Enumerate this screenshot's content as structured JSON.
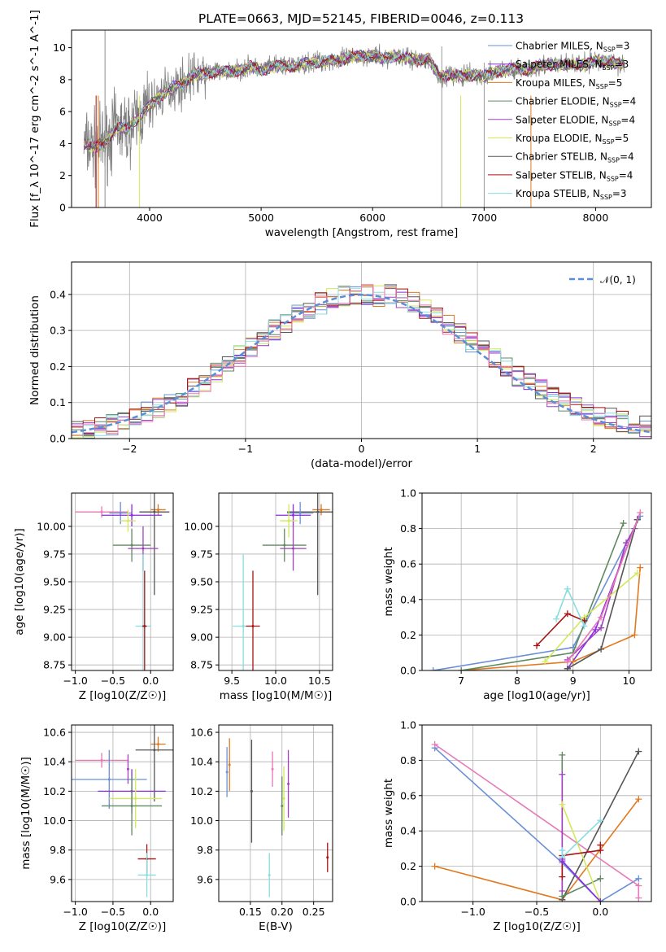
{
  "title": "PLATE=0663, MJD=52145, FIBERID=0046, z=0.113",
  "colors": {
    "chabrier_miles": "#6a8fd8",
    "salpeter_miles": "#8a2be2",
    "kroupa_miles": "#e07a20",
    "chabrier_elodie": "#5f8a5f",
    "salpeter_elodie": "#a040c0",
    "kroupa_elodie": "#d4e85a",
    "chabrier_stelib": "#555555",
    "salpeter_stelib": "#aa1111",
    "kroupa_stelib": "#88dde0",
    "pink": "#e878b8",
    "gauss": "#5b8ed8",
    "data": "#808080"
  },
  "chart_data": [
    {
      "type": "line",
      "panel": "spectrum",
      "title": "PLATE=0663, MJD=52145, FIBERID=0046, z=0.113",
      "xlabel": "wavelength [Angstrom, rest frame]",
      "ylabel": "Flux [f_λ 10^-17 erg cm^-2 s^-1 A^-1]",
      "xlim": [
        3300,
        8500
      ],
      "ylim": [
        0,
        11.1
      ],
      "xticks": [
        "4000",
        "5000",
        "6000",
        "7000",
        "8000"
      ],
      "yticks": [
        "0",
        "2",
        "4",
        "6",
        "8",
        "10"
      ],
      "grid": false,
      "legend": "top-right",
      "model_continuum": {
        "x": [
          3410,
          3500,
          3600,
          3700,
          3800,
          3900,
          4000,
          4100,
          4200,
          4300,
          4400,
          4500,
          4600,
          4700,
          4800,
          4900,
          5000,
          5100,
          5200,
          5300,
          5400,
          5500,
          5600,
          5700,
          5800,
          5900,
          6000,
          6100,
          6200,
          6300,
          6400,
          6500,
          6600,
          6700,
          6800,
          6900,
          7000,
          7100,
          7200,
          7300,
          7400,
          7500,
          7600,
          7700,
          7800,
          7900,
          8000,
          8100,
          8200,
          8260
        ],
        "y": [
          4.0,
          3.8,
          4.0,
          5.0,
          4.9,
          5.6,
          6.4,
          7.0,
          7.5,
          7.8,
          8.3,
          8.4,
          8.5,
          8.5,
          8.6,
          8.8,
          8.6,
          8.8,
          8.9,
          8.8,
          9.0,
          9.1,
          9.2,
          9.2,
          9.4,
          9.5,
          9.5,
          9.3,
          9.5,
          9.4,
          9.2,
          9.3,
          8.2,
          8.3,
          8.2,
          8.3,
          8.2,
          8.5,
          8.6,
          8.7,
          8.6,
          8.9,
          8.9,
          8.9,
          9.0,
          8.9,
          9.2,
          9.1,
          9.0,
          9.0
        ]
      },
      "series": [
        {
          "name": "Chabrier MILES, N_SSP=3"
        },
        {
          "name": "Salpeter MILES, N_SSP=3"
        },
        {
          "name": "Kroupa MILES, N_SSP=5"
        },
        {
          "name": "Chabrier ELODIE, N_SSP=4"
        },
        {
          "name": "Salpeter ELODIE, N_SSP=4"
        },
        {
          "name": "Kroupa ELODIE, N_SSP=5"
        },
        {
          "name": "Chabrier STELIB, N_SSP=4"
        },
        {
          "name": "Salpeter STELIB, N_SSP=4"
        },
        {
          "name": "Kroupa STELIB, N_SSP=3"
        }
      ]
    },
    {
      "type": "line",
      "panel": "residual_histogram",
      "xlabel": "(data-model)/error",
      "ylabel": "Normed distribution",
      "xlim": [
        -2.5,
        2.5
      ],
      "ylim": [
        0,
        0.49
      ],
      "xticks": [
        "−2",
        "−1",
        "0",
        "1",
        "2"
      ],
      "yticks": [
        "0.0",
        "0.1",
        "0.2",
        "0.3",
        "0.4"
      ],
      "grid": true,
      "legend": "top-right",
      "reference": {
        "name": "𝒩(0, 1)",
        "mean": 0,
        "sigma": 1
      },
      "bin_width": 0.1
    },
    {
      "type": "scatter",
      "panel": "age_vs_Z",
      "xlabel": "Z [log10(Z/Z☉)]",
      "ylabel": "age [log10(age/yr)]",
      "xlim": [
        -1.05,
        0.3
      ],
      "ylim": [
        8.7,
        10.3
      ],
      "xticks": [
        "−1.0",
        "−0.5",
        "0.0"
      ],
      "yticks": [
        "8.75",
        "9.00",
        "9.25",
        "9.50",
        "9.75",
        "10.00"
      ],
      "grid": true,
      "points": [
        {
          "c": "kroupa_miles",
          "x": 0.1,
          "y": 10.15,
          "xerr": 0.1,
          "yerr": 0.05
        },
        {
          "c": "chabrier_stelib",
          "x": 0.05,
          "y": 10.13,
          "xerr": 0.2,
          "yerr": 0.75
        },
        {
          "c": "pink",
          "x": -0.65,
          "y": 10.13,
          "xerr": 0.35,
          "yerr": 0.05
        },
        {
          "c": "chabrier_miles",
          "x": -0.4,
          "y": 10.12,
          "xerr": 0.15,
          "yerr": 0.1
        },
        {
          "c": "salpeter_miles",
          "x": -0.25,
          "y": 10.1,
          "xerr": 0.4,
          "yerr": 0.1
        },
        {
          "c": "kroupa_elodie",
          "x": -0.3,
          "y": 10.05,
          "xerr": 0.1,
          "yerr": 0.1
        },
        {
          "c": "chabrier_elodie",
          "x": -0.25,
          "y": 9.83,
          "xerr": 0.25,
          "yerr": 0.15
        },
        {
          "c": "salpeter_elodie",
          "x": -0.1,
          "y": 9.8,
          "xerr": 0.2,
          "yerr": 0.2
        },
        {
          "c": "kroupa_stelib",
          "x": -0.1,
          "y": 9.1,
          "xerr": 0.1,
          "yerr": 0.65
        },
        {
          "c": "salpeter_stelib",
          "x": -0.08,
          "y": 9.1,
          "xerr": 0.03,
          "yerr": 0.5
        }
      ]
    },
    {
      "type": "scatter",
      "panel": "age_vs_mass",
      "xlabel": "mass [log10(M/M☉)]",
      "ylabel": "",
      "xlim": [
        9.35,
        10.65
      ],
      "ylim": [
        8.7,
        10.3
      ],
      "xticks": [
        "9.5",
        "10.0",
        "10.5"
      ],
      "yticks": [
        "8.75",
        "9.00",
        "9.25",
        "9.50",
        "9.75",
        "10.00"
      ],
      "grid": true,
      "points": [
        {
          "c": "kroupa_miles",
          "x": 10.52,
          "y": 10.15,
          "xerr": 0.1,
          "yerr": 0.05
        },
        {
          "c": "chabrier_stelib",
          "x": 10.48,
          "y": 10.13,
          "xerr": 0.35,
          "yerr": 0.75
        },
        {
          "c": "chabrier_miles",
          "x": 10.28,
          "y": 10.12,
          "xerr": 0.15,
          "yerr": 0.1
        },
        {
          "c": "salpeter_miles",
          "x": 10.2,
          "y": 10.1,
          "xerr": 0.2,
          "yerr": 0.1
        },
        {
          "c": "kroupa_elodie",
          "x": 10.15,
          "y": 10.05,
          "xerr": 0.1,
          "yerr": 0.15
        },
        {
          "c": "chabrier_elodie",
          "x": 10.1,
          "y": 9.83,
          "xerr": 0.25,
          "yerr": 0.15
        },
        {
          "c": "salpeter_elodie",
          "x": 10.2,
          "y": 9.8,
          "xerr": 0.15,
          "yerr": 0.2
        },
        {
          "c": "kroupa_stelib",
          "x": 9.63,
          "y": 9.1,
          "xerr": 0.12,
          "yerr": 0.65
        },
        {
          "c": "salpeter_stelib",
          "x": 9.74,
          "y": 9.1,
          "xerr": 0.08,
          "yerr": 0.5
        }
      ]
    },
    {
      "type": "line",
      "panel": "mass_weight_vs_age",
      "xlabel": "age [log10(age/yr)]",
      "ylabel": "mass weight",
      "xlim": [
        6.3,
        10.4
      ],
      "ylim": [
        0,
        1.0
      ],
      "xticks": [
        "7",
        "8",
        "9",
        "10"
      ],
      "yticks": [
        "0.0",
        "0.2",
        "0.4",
        "0.6",
        "0.8",
        "1.0"
      ],
      "grid": true,
      "series": [
        {
          "c": "chabrier_miles",
          "x": [
            6.5,
            9.0,
            10.2
          ],
          "y": [
            0.0,
            0.13,
            0.87
          ]
        },
        {
          "c": "salpeter_miles",
          "x": [
            8.9,
            9.4,
            10.15
          ],
          "y": [
            0.01,
            0.23,
            0.85
          ]
        },
        {
          "c": "kroupa_miles",
          "x": [
            7.0,
            9.0,
            10.1,
            10.2
          ],
          "y": [
            0.0,
            0.05,
            0.2,
            0.58
          ]
        },
        {
          "c": "chabrier_elodie",
          "x": [
            7.0,
            9.0,
            9.9
          ],
          "y": [
            0.0,
            0.1,
            0.83
          ]
        },
        {
          "c": "salpeter_elodie",
          "x": [
            8.9,
            9.5,
            9.95,
            10.1
          ],
          "y": [
            0.06,
            0.24,
            0.72,
            0.8
          ]
        },
        {
          "c": "kroupa_elodie",
          "x": [
            8.5,
            9.2,
            10.15
          ],
          "y": [
            0.05,
            0.3,
            0.55
          ]
        },
        {
          "c": "chabrier_stelib",
          "x": [
            8.9,
            9.5,
            10.15
          ],
          "y": [
            0.01,
            0.12,
            0.85
          ]
        },
        {
          "c": "salpeter_stelib",
          "x": [
            8.35,
            8.9,
            9.2
          ],
          "y": [
            0.14,
            0.32,
            0.28
          ]
        },
        {
          "c": "kroupa_stelib",
          "x": [
            8.7,
            8.9,
            9.2
          ],
          "y": [
            0.29,
            0.46,
            0.25
          ]
        },
        {
          "c": "pink",
          "x": [
            8.9,
            9.5,
            10.2
          ],
          "y": [
            0.05,
            0.3,
            0.89
          ]
        }
      ]
    },
    {
      "type": "scatter",
      "panel": "mass_vs_Z",
      "xlabel": "Z [log10(Z/Z☉)]",
      "ylabel": "mass [log10(M/M☉)]",
      "xlim": [
        -1.05,
        0.3
      ],
      "ylim": [
        9.45,
        10.65
      ],
      "xticks": [
        "−1.0",
        "−0.5",
        "0.0"
      ],
      "yticks": [
        "9.6",
        "9.8",
        "10.0",
        "10.2",
        "10.4",
        "10.6"
      ],
      "grid": true,
      "points": [
        {
          "c": "kroupa_miles",
          "x": 0.1,
          "y": 10.52,
          "xerr": 0.1,
          "yerr": 0.05
        },
        {
          "c": "chabrier_stelib",
          "x": 0.05,
          "y": 10.48,
          "xerr": 0.25,
          "yerr": 0.35
        },
        {
          "c": "pink",
          "x": -0.65,
          "y": 10.41,
          "xerr": 0.35,
          "yerr": 0.05
        },
        {
          "c": "chabrier_miles",
          "x": -0.55,
          "y": 10.28,
          "xerr": 0.5,
          "yerr": 0.2
        },
        {
          "c": "salpeter_miles",
          "x": -0.25,
          "y": 10.2,
          "xerr": 0.45,
          "yerr": 0.15
        },
        {
          "c": "kroupa_elodie",
          "x": -0.2,
          "y": 10.15,
          "xerr": 0.35,
          "yerr": 0.2
        },
        {
          "c": "chabrier_elodie",
          "x": -0.25,
          "y": 10.1,
          "xerr": 0.4,
          "yerr": 0.2
        },
        {
          "c": "salpeter_elodie",
          "x": -0.3,
          "y": 10.35,
          "xerr": 0.01,
          "yerr": 0.1
        },
        {
          "c": "salpeter_stelib",
          "x": -0.05,
          "y": 9.74,
          "xerr": 0.12,
          "yerr": 0.1
        },
        {
          "c": "kroupa_stelib",
          "x": -0.05,
          "y": 9.63,
          "xerr": 0.12,
          "yerr": 0.15
        }
      ]
    },
    {
      "type": "scatter",
      "panel": "mass_vs_ebv",
      "xlabel": "E(B-V)",
      "ylabel": "",
      "xlim": [
        0.1,
        0.28
      ],
      "ylim": [
        9.45,
        10.65
      ],
      "xticks": [
        "0.15",
        "0.20",
        "0.25"
      ],
      "yticks": [
        "9.6",
        "9.8",
        "10.0",
        "10.2",
        "10.4",
        "10.6"
      ],
      "grid": true,
      "points": [
        {
          "c": "chabrier_miles",
          "x": 0.113,
          "y": 10.33,
          "xerr": 0,
          "yerr": 0.17
        },
        {
          "c": "kroupa_miles",
          "x": 0.117,
          "y": 10.38,
          "xerr": 0,
          "yerr": 0.18
        },
        {
          "c": "chabrier_stelib",
          "x": 0.152,
          "y": 10.2,
          "xerr": 0,
          "yerr": 0.35
        },
        {
          "c": "kroupa_stelib",
          "x": 0.18,
          "y": 9.63,
          "xerr": 0,
          "yerr": 0.15
        },
        {
          "c": "pink",
          "x": 0.185,
          "y": 10.35,
          "xerr": 0,
          "yerr": 0.12
        },
        {
          "c": "chabrier_elodie",
          "x": 0.2,
          "y": 10.1,
          "xerr": 0,
          "yerr": 0.2
        },
        {
          "c": "kroupa_elodie",
          "x": 0.203,
          "y": 10.15,
          "xerr": 0,
          "yerr": 0.22
        },
        {
          "c": "salpeter_elodie",
          "x": 0.21,
          "y": 10.25,
          "xerr": 0,
          "yerr": 0.23
        },
        {
          "c": "salpeter_stelib",
          "x": 0.272,
          "y": 9.75,
          "xerr": 0,
          "yerr": 0.1
        }
      ]
    },
    {
      "type": "line",
      "panel": "mass_weight_vs_Z",
      "xlabel": "Z [log10(Z/Z☉)]",
      "ylabel": "mass weight",
      "xlim": [
        -1.4,
        0.4
      ],
      "ylim": [
        0,
        1.0
      ],
      "xticks": [
        "−1.0",
        "−0.5",
        "0.0"
      ],
      "yticks": [
        "0.0",
        "0.2",
        "0.4",
        "0.6",
        "0.8",
        "1.0"
      ],
      "grid": true,
      "series": [
        {
          "c": "chabrier_miles",
          "x": [
            -1.3,
            -0.3,
            0.0,
            0.3
          ],
          "y": [
            0.87,
            0.22,
            0.0,
            0.13
          ]
        },
        {
          "c": "pink",
          "x": [
            -1.3,
            0.3,
            0.3
          ],
          "y": [
            0.89,
            0.09,
            0.02
          ]
        },
        {
          "c": "kroupa_miles",
          "x": [
            -1.3,
            -0.3,
            0.3
          ],
          "y": [
            0.2,
            0.01,
            0.58
          ]
        },
        {
          "c": "chabrier_stelib",
          "x": [
            -0.3,
            0.3
          ],
          "y": [
            0.01,
            0.85
          ]
        },
        {
          "c": "chabrier_elodie",
          "x": [
            -0.3,
            -0.3,
            0.0
          ],
          "y": [
            0.83,
            0.03,
            0.13
          ]
        },
        {
          "c": "salpeter_elodie",
          "x": [
            -0.3,
            -0.3,
            -0.3
          ],
          "y": [
            0.72,
            0.24,
            0.06
          ]
        },
        {
          "c": "kroupa_elodie",
          "x": [
            -0.3,
            0.0
          ],
          "y": [
            0.55,
            0.0
          ]
        },
        {
          "c": "salpeter_stelib",
          "x": [
            -0.3,
            -0.3,
            0.0,
            0.0
          ],
          "y": [
            0.14,
            0.26,
            0.29,
            0.32
          ]
        },
        {
          "c": "kroupa_stelib",
          "x": [
            -0.3,
            -0.3,
            0.0
          ],
          "y": [
            0.29,
            0.25,
            0.46
          ]
        },
        {
          "c": "salpeter_miles",
          "x": [
            -0.3,
            0.0
          ],
          "y": [
            0.23,
            0.0
          ]
        }
      ]
    }
  ]
}
